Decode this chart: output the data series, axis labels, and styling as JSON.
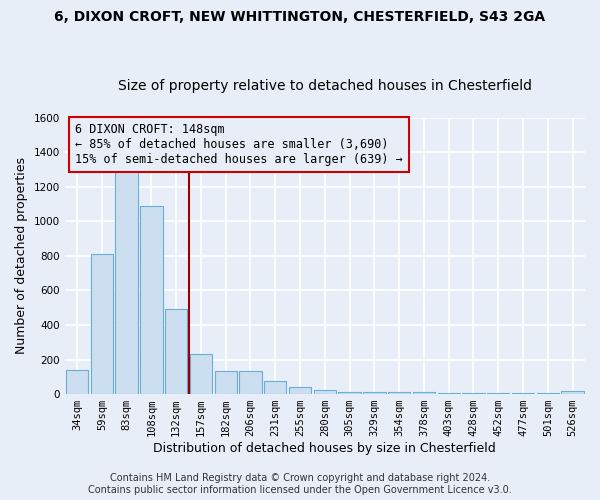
{
  "title_line1": "6, DIXON CROFT, NEW WHITTINGTON, CHESTERFIELD, S43 2GA",
  "title_line2": "Size of property relative to detached houses in Chesterfield",
  "xlabel": "Distribution of detached houses by size in Chesterfield",
  "ylabel": "Number of detached properties",
  "bar_color": "#ccdff0",
  "bar_edge_color": "#6aadd5",
  "categories": [
    "34sqm",
    "59sqm",
    "83sqm",
    "108sqm",
    "132sqm",
    "157sqm",
    "182sqm",
    "206sqm",
    "231sqm",
    "255sqm",
    "280sqm",
    "305sqm",
    "329sqm",
    "354sqm",
    "378sqm",
    "403sqm",
    "428sqm",
    "452sqm",
    "477sqm",
    "501sqm",
    "526sqm"
  ],
  "values": [
    140,
    810,
    1300,
    1090,
    490,
    235,
    135,
    135,
    75,
    40,
    25,
    10,
    10,
    10,
    10,
    5,
    5,
    5,
    5,
    5,
    15
  ],
  "ylim": [
    0,
    1600
  ],
  "yticks": [
    0,
    200,
    400,
    600,
    800,
    1000,
    1200,
    1400,
    1600
  ],
  "vline_x": 4.5,
  "vline_color": "#990000",
  "annotation_title": "6 DIXON CROFT: 148sqm",
  "annotation_line1": "← 85% of detached houses are smaller (3,690)",
  "annotation_line2": "15% of semi-detached houses are larger (639) →",
  "footer_line1": "Contains HM Land Registry data © Crown copyright and database right 2024.",
  "footer_line2": "Contains public sector information licensed under the Open Government Licence v3.0.",
  "background_color": "#e8eef8",
  "grid_color": "#ffffff",
  "title_fontsize": 10,
  "subtitle_fontsize": 10,
  "ylabel_fontsize": 9,
  "xlabel_fontsize": 9,
  "tick_fontsize": 7.5,
  "annotation_fontsize": 8.5,
  "footer_fontsize": 7
}
